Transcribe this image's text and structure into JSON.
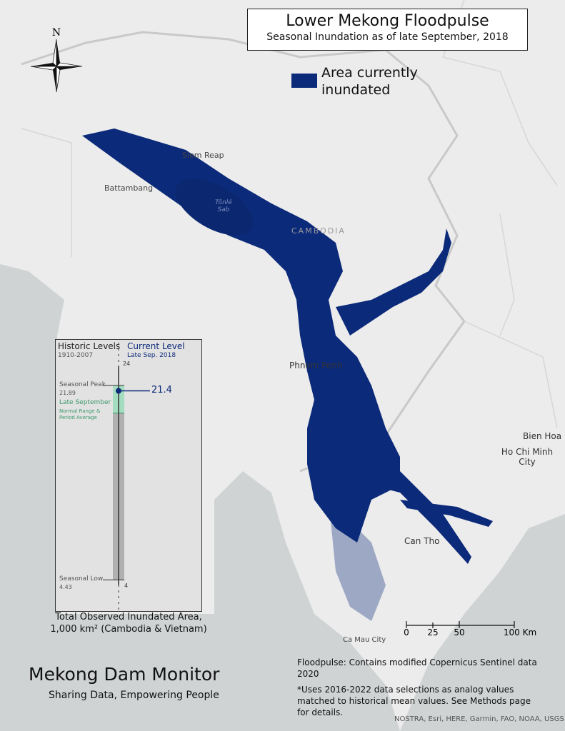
{
  "title": "Lower Mekong Floodpulse",
  "subtitle": "Seasonal Inundation as of late September, 2018",
  "legend": {
    "label": "Area currently inundated",
    "color": "#0c2a7a"
  },
  "compass": {
    "north_label": "N"
  },
  "map_labels": {
    "siem_reap": "Siem Reap",
    "battambang": "Battambang",
    "tonle_sap": "Tônlé Sab",
    "cambodia": "CAMBODIA",
    "phnom_penh": "Phnom Penh",
    "bien_hoa": "Bien Hoa",
    "ho_chi_minh": "Ho Chi Minh City",
    "can_tho": "Can Tho",
    "ca_mau": "Ca Mau City"
  },
  "colors": {
    "land": "#ececec",
    "sea": "#cfd3d4",
    "flood": "#0c2a7a",
    "normal_range": "#a3dcbf",
    "historic_bar": "#b0b0b0"
  },
  "panel": {
    "historic_title": "Historic Levels",
    "historic_years": "1910-2007",
    "current_title": "Current Level",
    "current_date": "Late Sep. 2018",
    "axis_max": 24,
    "axis_min": 4,
    "peak_label": "Seasonal Peak",
    "peak_value": 21.89,
    "low_label": "Seasonal Low",
    "low_value": 4.43,
    "normal_title": "Late September",
    "normal_desc_1": "Normal Range &",
    "normal_desc_2": "Period Average",
    "normal_range_low": 19.4,
    "current_value": 21.4,
    "caption_1": "Total Observed Inundated Area,",
    "caption_2": "1,000 km² (Cambodia & Vietnam)"
  },
  "scale_bar": {
    "ticks": [
      "0",
      "25",
      "50",
      "100 Km"
    ]
  },
  "brand": {
    "name": "Mekong Dam Monitor",
    "tagline": "Sharing Data, Empowering People"
  },
  "notes": {
    "source": "Floodpulse: Contains modified Copernicus Sentinel data 2020",
    "method": "*Uses 2016-2022 data selections as analog values matched to historical mean values. See Methods page for details.",
    "credits": "NOSTRA, Esri, HERE, Garmin, FAO, NOAA, USGS"
  }
}
